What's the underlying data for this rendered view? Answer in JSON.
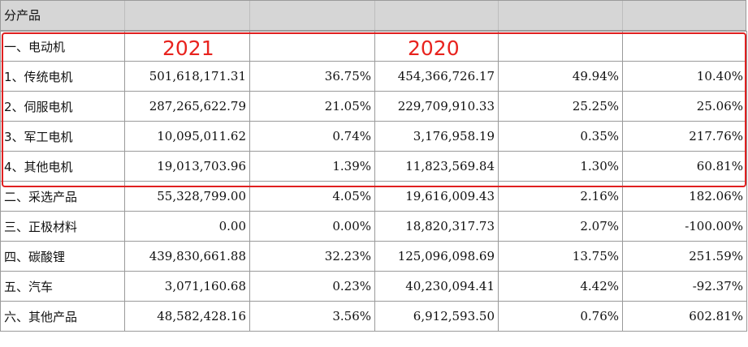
{
  "header": {
    "title": "分产品"
  },
  "annotations": {
    "year_current": "2021",
    "year_prior": "2020",
    "highlight_color": "#e02020"
  },
  "rows": [
    {
      "label": "一、电动机",
      "amount_2021": "",
      "share_2021": "",
      "amount_2020": "",
      "share_2020": "",
      "change": ""
    },
    {
      "label": "1、传统电机",
      "amount_2021": "501,618,171.31",
      "share_2021": "36.75%",
      "amount_2020": "454,366,726.17",
      "share_2020": "49.94%",
      "change": "10.40%"
    },
    {
      "label": "2、伺服电机",
      "amount_2021": "287,265,622.79",
      "share_2021": "21.05%",
      "amount_2020": "229,709,910.33",
      "share_2020": "25.25%",
      "change": "25.06%"
    },
    {
      "label": "3、军工电机",
      "amount_2021": "10,095,011.62",
      "share_2021": "0.74%",
      "amount_2020": "3,176,958.19",
      "share_2020": "0.35%",
      "change": "217.76%"
    },
    {
      "label": "4、其他电机",
      "amount_2021": "19,013,703.96",
      "share_2021": "1.39%",
      "amount_2020": "11,823,569.84",
      "share_2020": "1.30%",
      "change": "60.81%"
    },
    {
      "label": "二、采选产品",
      "amount_2021": "55,328,799.00",
      "share_2021": "4.05%",
      "amount_2020": "19,616,009.43",
      "share_2020": "2.16%",
      "change": "182.06%"
    },
    {
      "label": "三、正极材料",
      "amount_2021": "0.00",
      "share_2021": "0.00%",
      "amount_2020": "18,820,317.73",
      "share_2020": "2.07%",
      "change": "-100.00%"
    },
    {
      "label": "四、碳酸锂",
      "amount_2021": "439,830,661.88",
      "share_2021": "32.23%",
      "amount_2020": "125,096,098.69",
      "share_2020": "13.75%",
      "change": "251.59%"
    },
    {
      "label": "五、汽车",
      "amount_2021": "3,071,160.68",
      "share_2021": "0.23%",
      "amount_2020": "40,230,094.41",
      "share_2020": "4.42%",
      "change": "-92.37%"
    },
    {
      "label": "六、其他产品",
      "amount_2021": "48,582,428.16",
      "share_2021": "3.56%",
      "amount_2020": "6,912,593.50",
      "share_2020": "0.76%",
      "change": "602.81%"
    }
  ]
}
